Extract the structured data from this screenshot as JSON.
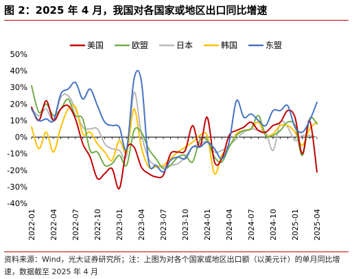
{
  "title": "图 2：2025 年 4 月，我国对各国家或地区出口同比增速",
  "source_note": "资料来源：Wind，光大证券研究所；注：上图为对各个国家或地区出口额（以美元计）的单月同比增速，数据截至 2025 年 4 月",
  "chart_data": {
    "type": "line",
    "ylim": [
      -0.4,
      0.5
    ],
    "yticks": [
      "-40%",
      "-30%",
      "-20%",
      "-10%",
      "0%",
      "10%",
      "20%",
      "30%",
      "40%",
      "50%"
    ],
    "xticks": [
      "2022-01",
      "2022-04",
      "2022-07",
      "2022-10",
      "2023-01",
      "2023-04",
      "2023-07",
      "2023-10",
      "2024-01",
      "2024-04",
      "2024-07",
      "2024-10",
      "2025-01",
      "2025-04"
    ],
    "x": [
      "2022-01",
      "2022-02",
      "2022-03",
      "2022-04",
      "2022-05",
      "2022-06",
      "2022-07",
      "2022-08",
      "2022-09",
      "2022-10",
      "2022-11",
      "2022-12",
      "2023-01",
      "2023-02",
      "2023-03",
      "2023-04",
      "2023-05",
      "2023-06",
      "2023-07",
      "2023-08",
      "2023-09",
      "2023-10",
      "2023-11",
      "2023-12",
      "2024-01",
      "2024-02",
      "2024-03",
      "2024-04",
      "2024-05",
      "2024-06",
      "2024-07",
      "2024-08",
      "2024-09",
      "2024-10",
      "2024-11",
      "2024-12",
      "2025-01",
      "2025-02",
      "2025-03",
      "2025-04"
    ],
    "legend_position": "top",
    "grid": false,
    "series": [
      {
        "name": "美国",
        "color": "#c00000",
        "values": [
          0.18,
          0.1,
          0.22,
          0.1,
          0.17,
          0.19,
          0.11,
          -0.04,
          -0.12,
          -0.25,
          -0.22,
          -0.19,
          -0.31,
          -0.07,
          -0.06,
          -0.18,
          -0.22,
          -0.24,
          -0.23,
          -0.1,
          -0.09,
          -0.08,
          0.07,
          -0.06,
          0.12,
          -0.15,
          -0.13,
          0.01,
          0.04,
          0.06,
          0.09,
          0.04,
          0.03,
          0.07,
          0.09,
          0.16,
          0.12,
          -0.1,
          0.1,
          -0.21
        ]
      },
      {
        "name": "欧盟",
        "color": "#70ad47",
        "values": [
          0.31,
          0.15,
          0.2,
          0.13,
          0.17,
          0.23,
          0.13,
          0.11,
          -0.08,
          -0.09,
          -0.17,
          -0.16,
          -0.11,
          -0.17,
          0.04,
          0.03,
          -0.07,
          -0.13,
          -0.19,
          -0.17,
          -0.12,
          -0.11,
          -0.15,
          -0.02,
          -0.02,
          -0.12,
          -0.15,
          -0.06,
          0.01,
          0.04,
          0.05,
          0.13,
          0.01,
          0.01,
          0.04,
          0.09,
          0.07,
          -0.11,
          0.11,
          0.08
        ]
      },
      {
        "name": "日本",
        "color": "#b7b7b7",
        "values": [
          0.17,
          0.13,
          0.17,
          0.1,
          0.24,
          0.25,
          0.17,
          0.06,
          0.05,
          0.05,
          -0.04,
          -0.07,
          -0.08,
          -0.11,
          0.27,
          0.02,
          -0.13,
          -0.17,
          -0.18,
          -0.17,
          -0.16,
          -0.12,
          -0.06,
          -0.04,
          -0.03,
          -0.09,
          -0.08,
          -0.05,
          -0.01,
          0.03,
          0.05,
          0.04,
          0.03,
          -0.08,
          0.09,
          0.06,
          -0.02,
          0.01,
          0.01,
          0.0
        ]
      },
      {
        "name": "韩国",
        "color": "#ffc000",
        "values": [
          0.06,
          -0.07,
          0.03,
          -0.09,
          0.06,
          0.17,
          0.18,
          0.02,
          0.03,
          -0.04,
          -0.09,
          -0.14,
          -0.02,
          -0.09,
          0.17,
          -0.06,
          -0.18,
          -0.18,
          -0.17,
          -0.13,
          -0.09,
          -0.06,
          -0.03,
          0.01,
          0.01,
          -0.22,
          -0.11,
          -0.06,
          0.02,
          0.04,
          0.05,
          0.09,
          0.01,
          0.02,
          0.07,
          0.07,
          0.03,
          -0.05,
          0.05,
          0.09
        ]
      },
      {
        "name": "东盟",
        "color": "#4472c4",
        "values": [
          0.17,
          0.1,
          0.11,
          0.1,
          0.26,
          0.29,
          0.33,
          0.23,
          0.29,
          0.19,
          0.09,
          0.07,
          0.06,
          -0.07,
          0.35,
          0.34,
          -0.15,
          -0.17,
          -0.21,
          -0.14,
          -0.12,
          -0.13,
          -0.06,
          -0.06,
          -0.03,
          -0.07,
          -0.13,
          -0.03,
          0.22,
          0.12,
          0.14,
          0.1,
          0.07,
          0.16,
          0.16,
          0.19,
          0.06,
          0.03,
          0.1,
          0.21
        ]
      }
    ]
  }
}
